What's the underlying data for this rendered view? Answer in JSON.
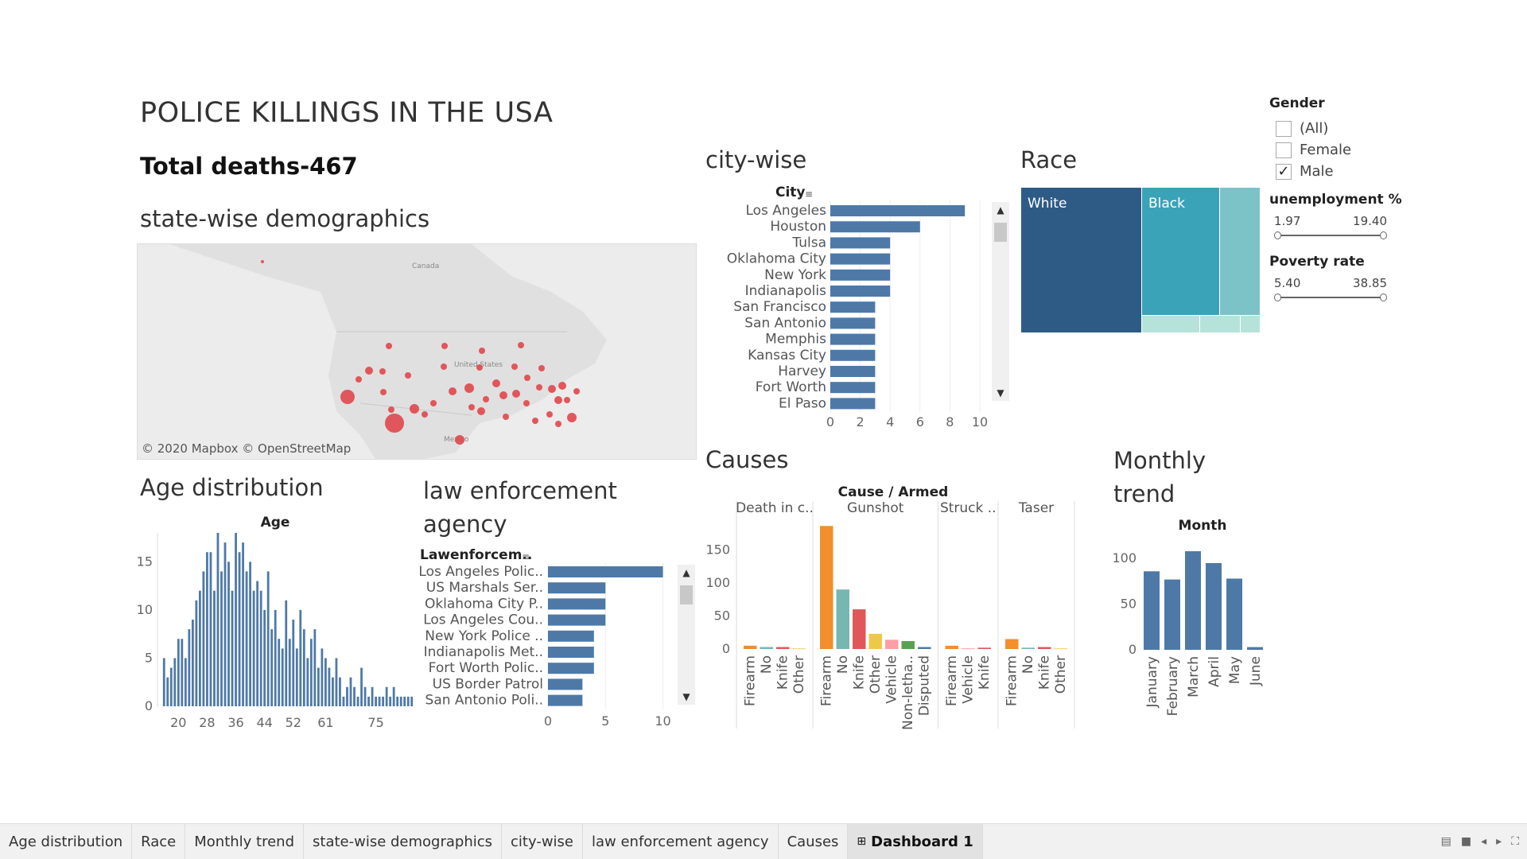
{
  "dashboard": {
    "title": "POLICE KILLINGS IN THE USA",
    "total": "Total deaths-467"
  },
  "sections": {
    "state": "state-wise demographics",
    "city": "city-wise",
    "race": "Race",
    "age": "Age distribution",
    "law": "law enforcement agency",
    "causes": "Causes",
    "monthly": "Monthly trend"
  },
  "map": {
    "credit": "© 2020 Mapbox © OpenStreetMap",
    "labels": {
      "canada": "Canada",
      "us": "United States",
      "mexico": "Mexico"
    },
    "marker_color": "#e0474c"
  },
  "filters": {
    "gender": {
      "title": "Gender",
      "options": [
        {
          "label": "(All)",
          "checked": false
        },
        {
          "label": "Female",
          "checked": false
        },
        {
          "label": "Male",
          "checked": true
        }
      ]
    },
    "unemployment": {
      "title": "unemployment %",
      "min": "1.97",
      "max": "19.40"
    },
    "poverty": {
      "title": "Poverty rate",
      "min": "5.40",
      "max": "38.85"
    }
  },
  "city_chart": {
    "type": "bar",
    "header": "City",
    "categories": [
      "Los Angeles",
      "Houston",
      "Tulsa",
      "Oklahoma City",
      "New York",
      "Indianapolis",
      "San Francisco",
      "San Antonio",
      "Memphis",
      "Kansas City",
      "Harvey",
      "Fort Worth",
      "El Paso"
    ],
    "values": [
      9,
      6,
      4,
      4,
      4,
      4,
      3,
      3,
      3,
      3,
      3,
      3,
      3
    ],
    "ticks": [
      "0",
      "2",
      "4",
      "6",
      "8",
      "10"
    ],
    "xlim": [
      0,
      10
    ]
  },
  "race_chart": {
    "type": "heatmap",
    "labels": [
      "White",
      "Black"
    ],
    "colors": [
      "#2e5b86",
      "#3aa3b8",
      "#7cc3c8",
      "#b5e3da"
    ]
  },
  "chart_data": [
    {
      "type": "bar",
      "title": "Age",
      "x": [
        16,
        17,
        18,
        19,
        20,
        21,
        22,
        23,
        24,
        25,
        26,
        27,
        28,
        29,
        30,
        31,
        32,
        33,
        34,
        35,
        36,
        37,
        38,
        39,
        40,
        41,
        42,
        43,
        44,
        45,
        46,
        47,
        48,
        49,
        50,
        51,
        52,
        53,
        54,
        55,
        56,
        57,
        58,
        59,
        60,
        61,
        62,
        63,
        64,
        65,
        66,
        67,
        68,
        69,
        70,
        71,
        72,
        73,
        74,
        75,
        76,
        77,
        78,
        79,
        80,
        81,
        82,
        83,
        84,
        85
      ],
      "values": [
        5,
        3,
        4,
        5,
        7,
        7,
        5,
        8,
        9,
        11,
        12,
        14,
        16,
        16,
        12,
        18,
        14,
        17,
        15,
        12,
        18,
        16,
        17,
        14,
        15,
        12,
        13,
        12,
        10,
        14,
        8,
        10,
        7,
        6,
        11,
        7,
        9,
        6,
        10,
        8,
        5,
        7,
        8,
        4,
        6,
        5,
        4,
        3,
        5,
        3,
        1,
        2,
        3,
        2,
        1,
        4,
        2,
        1,
        2,
        1,
        1,
        1,
        2,
        1,
        2,
        1,
        1,
        1,
        1,
        1
      ],
      "ticks": [
        "20",
        "28",
        "36",
        "44",
        "52",
        "61",
        "75"
      ],
      "yticks": [
        "0",
        "5",
        "10",
        "15"
      ],
      "ylim": [
        0,
        18
      ]
    },
    {
      "type": "bar",
      "header": "Lawenforcem..",
      "categories": [
        "Los Angeles Polic..",
        "US Marshals Ser..",
        "Oklahoma City P..",
        "Los Angeles Cou..",
        "New York Police ..",
        "Indianapolis Met..",
        "Fort Worth Polic..",
        "US Border Patrol",
        "San Antonio Poli.."
      ],
      "values": [
        10,
        5,
        5,
        5,
        4,
        4,
        4,
        3,
        3
      ],
      "ticks": [
        "0",
        "5",
        "10"
      ],
      "xlim": [
        0,
        11
      ]
    },
    {
      "type": "bar",
      "title": "Cause / Armed",
      "groups": [
        {
          "name": "Death in c..",
          "categories": [
            "Firearm",
            "No",
            "Knife",
            "Other"
          ],
          "values": [
            5,
            3,
            3,
            1
          ],
          "colors": [
            "#f28e2b",
            "#76b7b2",
            "#e15759",
            "#f1ce63"
          ]
        },
        {
          "name": "Gunshot",
          "categories": [
            "Firearm",
            "No",
            "Knife",
            "Other",
            "Vehicle",
            "Non-letha..",
            "Disputed"
          ],
          "values": [
            186,
            90,
            60,
            23,
            14,
            12,
            3
          ],
          "colors": [
            "#f28e2b",
            "#76b7b2",
            "#e15759",
            "#edc948",
            "#ff9da7",
            "#59a14f",
            "#4e79a7"
          ]
        },
        {
          "name": "Struck ..",
          "categories": [
            "Firearm",
            "Vehicle",
            "Knife"
          ],
          "values": [
            5,
            1,
            2
          ],
          "colors": [
            "#f28e2b",
            "#ff9da7",
            "#e15759"
          ]
        },
        {
          "name": "Taser",
          "categories": [
            "Firearm",
            "No",
            "Knife",
            "Other"
          ],
          "values": [
            15,
            2,
            3,
            1
          ],
          "colors": [
            "#f28e2b",
            "#76b7b2",
            "#e15759",
            "#f1ce63"
          ]
        }
      ],
      "yticks": [
        "0",
        "50",
        "100",
        "150"
      ],
      "ylim": [
        0,
        190
      ]
    },
    {
      "type": "bar",
      "title": "Month",
      "categories": [
        "January",
        "February",
        "March",
        "April",
        "May",
        "June"
      ],
      "values": [
        86,
        77,
        108,
        95,
        78,
        3
      ],
      "yticks": [
        "0",
        "50",
        "100"
      ],
      "ylim": [
        0,
        115
      ]
    }
  ],
  "tabs": [
    "Age distribution",
    "Race",
    "Monthly trend",
    "state-wise demographics",
    "city-wise",
    "law enforcement agency",
    "Causes",
    "Dashboard 1"
  ],
  "colors": {
    "bar": "#4e79a7",
    "accent": "#2e5b86"
  }
}
